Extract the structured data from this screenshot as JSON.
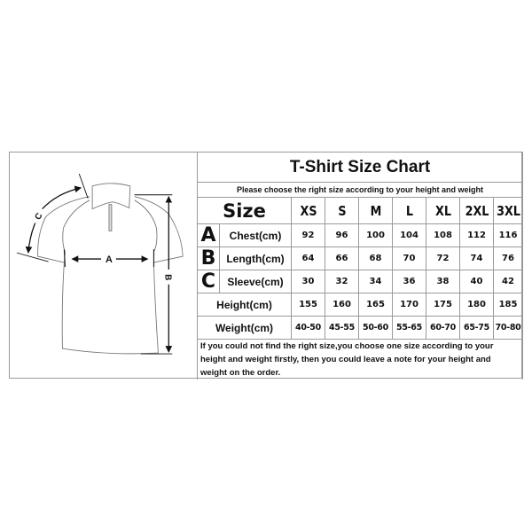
{
  "title": "T-Shirt Size Chart",
  "subtitle": "Please choose the right size according to your height and weight",
  "size_label": "Size",
  "sizes": [
    "XS",
    "S",
    "M",
    "L",
    "XL",
    "2XL",
    "3XL"
  ],
  "rows": [
    {
      "letter": "A",
      "label": "Chest(cm)",
      "values": [
        "92",
        "96",
        "100",
        "104",
        "108",
        "112",
        "116"
      ]
    },
    {
      "letter": "B",
      "label": "Length(cm)",
      "values": [
        "64",
        "66",
        "68",
        "70",
        "72",
        "74",
        "76"
      ]
    },
    {
      "letter": "C",
      "label": "Sleeve(cm)",
      "values": [
        "30",
        "32",
        "34",
        "36",
        "38",
        "40",
        "42"
      ]
    },
    {
      "letter": "",
      "label": "Height(cm)",
      "values": [
        "155",
        "160",
        "165",
        "170",
        "175",
        "180",
        "185"
      ]
    },
    {
      "letter": "",
      "label": "Weight(cm)",
      "values": [
        "40-50",
        "45-55",
        "50-60",
        "55-65",
        "60-70",
        "65-75",
        "70-80"
      ]
    }
  ],
  "note": "If you could not find the right size,you choose one size according to your height and weight firstly, then you could leave a note for your height and weight on the order.",
  "diagram": {
    "label_a": "A",
    "label_b": "B",
    "label_c": "C"
  }
}
